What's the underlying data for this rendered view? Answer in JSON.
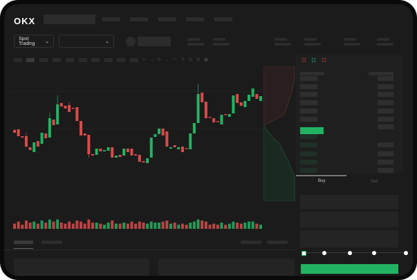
{
  "header": {
    "logo": "OKX"
  },
  "market": {
    "mode_label": "Spot Trading"
  },
  "orderbook": {
    "view_icons": [
      "orderbook-both-icon",
      "orderbook-bids-icon",
      "orderbook-asks-icon"
    ]
  },
  "trade": {
    "tabs": [
      "Buy",
      "Sell"
    ],
    "amount_slider_percent": 0,
    "slider_steps": [
      0,
      25,
      50,
      75,
      100
    ]
  },
  "colors": {
    "up": "#22b362",
    "down": "#d94b4b",
    "accent": "#22b362"
  },
  "chart_data": {
    "type": "candlestick",
    "candles": [
      [
        118,
        114,
        119,
        114
      ],
      [
        119,
        109,
        119,
        109
      ],
      [
        109,
        107,
        109,
        107
      ],
      [
        109,
        94,
        114,
        93
      ],
      [
        93,
        89,
        93,
        89
      ],
      [
        86,
        100,
        100,
        86
      ],
      [
        102,
        94,
        102,
        94
      ],
      [
        98,
        114,
        114,
        98
      ],
      [
        113,
        106,
        113,
        106
      ],
      [
        107,
        135,
        143,
        107
      ],
      [
        133,
        125,
        133,
        125
      ],
      [
        126,
        155,
        168,
        126
      ],
      [
        157,
        152,
        157,
        152
      ],
      [
        153,
        149,
        153,
        149
      ],
      [
        154,
        144,
        159,
        144
      ],
      [
        150,
        149,
        150,
        149
      ],
      [
        151,
        131,
        151,
        131
      ],
      [
        131,
        110,
        131,
        110
      ],
      [
        113,
        110,
        113,
        110
      ],
      [
        111,
        83,
        111,
        78
      ],
      [
        83,
        81,
        83,
        81
      ],
      [
        82,
        91,
        91,
        82
      ],
      [
        91,
        87,
        91,
        87
      ],
      [
        87,
        89,
        89,
        87
      ],
      [
        88,
        93,
        93,
        88
      ],
      [
        93,
        78,
        93,
        78
      ],
      [
        78,
        81,
        81,
        78
      ],
      [
        82,
        79,
        82,
        79
      ],
      [
        81,
        91,
        91,
        81
      ],
      [
        91,
        86,
        91,
        86
      ],
      [
        91,
        81,
        91,
        81
      ],
      [
        83,
        81,
        83,
        81
      ],
      [
        82,
        72,
        82,
        72
      ],
      [
        73,
        71,
        73,
        71
      ],
      [
        70,
        77,
        77,
        70
      ],
      [
        78,
        107,
        107,
        78
      ],
      [
        108,
        112,
        112,
        108
      ],
      [
        112,
        120,
        120,
        112
      ],
      [
        120,
        110,
        120,
        110
      ],
      [
        116,
        94,
        116,
        94
      ],
      [
        91,
        93,
        93,
        91
      ],
      [
        96,
        93,
        96,
        93
      ],
      [
        90,
        93,
        93,
        90
      ],
      [
        94,
        86,
        94,
        86
      ],
      [
        92,
        91,
        92,
        91
      ],
      [
        90,
        113,
        113,
        90
      ],
      [
        113,
        128,
        128,
        113
      ],
      [
        128,
        170,
        185,
        128
      ],
      [
        172,
        158,
        172,
        158
      ],
      [
        159,
        135,
        159,
        135
      ],
      [
        137,
        136,
        137,
        136
      ],
      [
        135,
        129,
        135,
        129
      ],
      [
        131,
        130,
        131,
        130
      ],
      [
        126,
        140,
        140,
        126
      ],
      [
        141,
        140,
        141,
        140
      ],
      [
        137,
        141,
        141,
        137
      ],
      [
        142,
        168,
        168,
        142
      ],
      [
        170,
        157,
        170,
        157
      ],
      [
        158,
        153,
        158,
        153
      ],
      [
        151,
        160,
        160,
        151
      ],
      [
        160,
        169,
        169,
        160
      ],
      [
        166,
        178,
        178,
        166
      ],
      [
        170,
        163,
        170,
        163
      ],
      [
        160,
        167,
        167,
        160
      ]
    ],
    "volumes": [
      5,
      7,
      4,
      8,
      6,
      7,
      5,
      8,
      6,
      9,
      7,
      9,
      6,
      5,
      7,
      5,
      8,
      7,
      5,
      9,
      6,
      6,
      5,
      4,
      6,
      8,
      5,
      5,
      6,
      5,
      7,
      5,
      7,
      6,
      5,
      7,
      6,
      6,
      7,
      8,
      5,
      6,
      4,
      5,
      4,
      6,
      7,
      9,
      8,
      7,
      4,
      5,
      4,
      6,
      4,
      5,
      7,
      6,
      5,
      6,
      7,
      7,
      5,
      4
    ]
  }
}
